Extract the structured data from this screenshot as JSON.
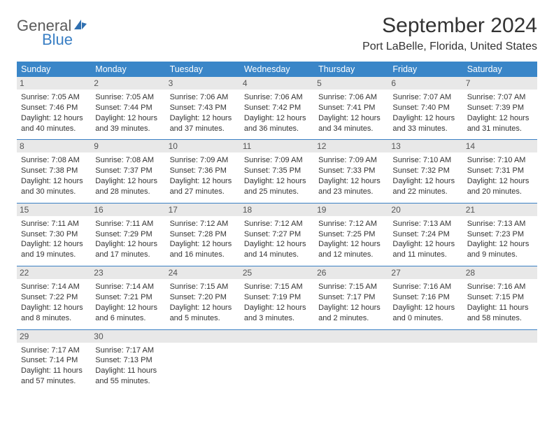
{
  "logo": {
    "text_general": "General",
    "text_blue": "Blue",
    "icon_color": "#2f6fb0"
  },
  "header": {
    "month_title": "September 2024",
    "location": "Port LaBelle, Florida, United States"
  },
  "styling": {
    "header_bar_color": "#3a86c8",
    "header_bar_text_color": "#ffffff",
    "day_number_bg": "#e8e8e8",
    "week_divider_color": "#3a7fc4",
    "body_bg": "#ffffff",
    "text_color": "#333333",
    "title_fontsize_pt": 22,
    "location_fontsize_pt": 12,
    "dow_fontsize_pt": 9.5,
    "cell_fontsize_pt": 8.3
  },
  "days_of_week": [
    "Sunday",
    "Monday",
    "Tuesday",
    "Wednesday",
    "Thursday",
    "Friday",
    "Saturday"
  ],
  "labels": {
    "sunrise": "Sunrise:",
    "sunset": "Sunset:",
    "daylight": "Daylight:"
  },
  "weeks": [
    [
      {
        "n": "1",
        "sunrise": "7:05 AM",
        "sunset": "7:46 PM",
        "daylight": "12 hours and 40 minutes."
      },
      {
        "n": "2",
        "sunrise": "7:05 AM",
        "sunset": "7:44 PM",
        "daylight": "12 hours and 39 minutes."
      },
      {
        "n": "3",
        "sunrise": "7:06 AM",
        "sunset": "7:43 PM",
        "daylight": "12 hours and 37 minutes."
      },
      {
        "n": "4",
        "sunrise": "7:06 AM",
        "sunset": "7:42 PM",
        "daylight": "12 hours and 36 minutes."
      },
      {
        "n": "5",
        "sunrise": "7:06 AM",
        "sunset": "7:41 PM",
        "daylight": "12 hours and 34 minutes."
      },
      {
        "n": "6",
        "sunrise": "7:07 AM",
        "sunset": "7:40 PM",
        "daylight": "12 hours and 33 minutes."
      },
      {
        "n": "7",
        "sunrise": "7:07 AM",
        "sunset": "7:39 PM",
        "daylight": "12 hours and 31 minutes."
      }
    ],
    [
      {
        "n": "8",
        "sunrise": "7:08 AM",
        "sunset": "7:38 PM",
        "daylight": "12 hours and 30 minutes."
      },
      {
        "n": "9",
        "sunrise": "7:08 AM",
        "sunset": "7:37 PM",
        "daylight": "12 hours and 28 minutes."
      },
      {
        "n": "10",
        "sunrise": "7:09 AM",
        "sunset": "7:36 PM",
        "daylight": "12 hours and 27 minutes."
      },
      {
        "n": "11",
        "sunrise": "7:09 AM",
        "sunset": "7:35 PM",
        "daylight": "12 hours and 25 minutes."
      },
      {
        "n": "12",
        "sunrise": "7:09 AM",
        "sunset": "7:33 PM",
        "daylight": "12 hours and 23 minutes."
      },
      {
        "n": "13",
        "sunrise": "7:10 AM",
        "sunset": "7:32 PM",
        "daylight": "12 hours and 22 minutes."
      },
      {
        "n": "14",
        "sunrise": "7:10 AM",
        "sunset": "7:31 PM",
        "daylight": "12 hours and 20 minutes."
      }
    ],
    [
      {
        "n": "15",
        "sunrise": "7:11 AM",
        "sunset": "7:30 PM",
        "daylight": "12 hours and 19 minutes."
      },
      {
        "n": "16",
        "sunrise": "7:11 AM",
        "sunset": "7:29 PM",
        "daylight": "12 hours and 17 minutes."
      },
      {
        "n": "17",
        "sunrise": "7:12 AM",
        "sunset": "7:28 PM",
        "daylight": "12 hours and 16 minutes."
      },
      {
        "n": "18",
        "sunrise": "7:12 AM",
        "sunset": "7:27 PM",
        "daylight": "12 hours and 14 minutes."
      },
      {
        "n": "19",
        "sunrise": "7:12 AM",
        "sunset": "7:25 PM",
        "daylight": "12 hours and 12 minutes."
      },
      {
        "n": "20",
        "sunrise": "7:13 AM",
        "sunset": "7:24 PM",
        "daylight": "12 hours and 11 minutes."
      },
      {
        "n": "21",
        "sunrise": "7:13 AM",
        "sunset": "7:23 PM",
        "daylight": "12 hours and 9 minutes."
      }
    ],
    [
      {
        "n": "22",
        "sunrise": "7:14 AM",
        "sunset": "7:22 PM",
        "daylight": "12 hours and 8 minutes."
      },
      {
        "n": "23",
        "sunrise": "7:14 AM",
        "sunset": "7:21 PM",
        "daylight": "12 hours and 6 minutes."
      },
      {
        "n": "24",
        "sunrise": "7:15 AM",
        "sunset": "7:20 PM",
        "daylight": "12 hours and 5 minutes."
      },
      {
        "n": "25",
        "sunrise": "7:15 AM",
        "sunset": "7:19 PM",
        "daylight": "12 hours and 3 minutes."
      },
      {
        "n": "26",
        "sunrise": "7:15 AM",
        "sunset": "7:17 PM",
        "daylight": "12 hours and 2 minutes."
      },
      {
        "n": "27",
        "sunrise": "7:16 AM",
        "sunset": "7:16 PM",
        "daylight": "12 hours and 0 minutes."
      },
      {
        "n": "28",
        "sunrise": "7:16 AM",
        "sunset": "7:15 PM",
        "daylight": "11 hours and 58 minutes."
      }
    ],
    [
      {
        "n": "29",
        "sunrise": "7:17 AM",
        "sunset": "7:14 PM",
        "daylight": "11 hours and 57 minutes."
      },
      {
        "n": "30",
        "sunrise": "7:17 AM",
        "sunset": "7:13 PM",
        "daylight": "11 hours and 55 minutes."
      },
      {
        "n": "",
        "empty": true
      },
      {
        "n": "",
        "empty": true
      },
      {
        "n": "",
        "empty": true
      },
      {
        "n": "",
        "empty": true
      },
      {
        "n": "",
        "empty": true
      }
    ]
  ]
}
